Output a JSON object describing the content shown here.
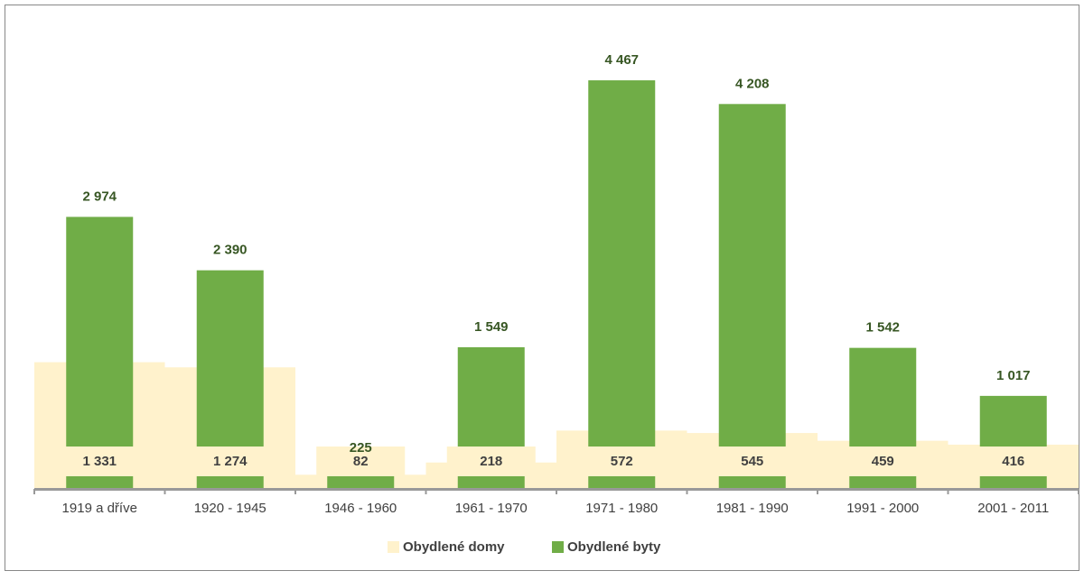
{
  "chart_data": {
    "type": "bar",
    "categories": [
      "1919 a dříve",
      "1920 - 1945",
      "1946 - 1960",
      "1961 - 1970",
      "1971 - 1980",
      "1981 - 1990",
      "1991 - 2000",
      "2001 - 2011"
    ],
    "series": [
      {
        "name": "Obydlené domy",
        "color": "#fff2cc",
        "axis": "y2",
        "values": [
          1331,
          1274,
          82,
          218,
          572,
          545,
          459,
          416
        ],
        "value_labels": [
          "1 331",
          "1 274",
          "82",
          "218",
          "572",
          "545",
          "459",
          "416"
        ]
      },
      {
        "name": "Obydlené byty",
        "color": "#70ad47",
        "values": [
          2974,
          2390,
          225,
          1549,
          4467,
          4208,
          1542,
          1017
        ],
        "value_labels": [
          "2 974",
          "2 390",
          "225",
          "1 549",
          "4 467",
          "4 208",
          "1 542",
          "1 017"
        ]
      }
    ],
    "ylim": [
      0,
      5000
    ],
    "y2lim": [
      -75,
      5000
    ]
  }
}
